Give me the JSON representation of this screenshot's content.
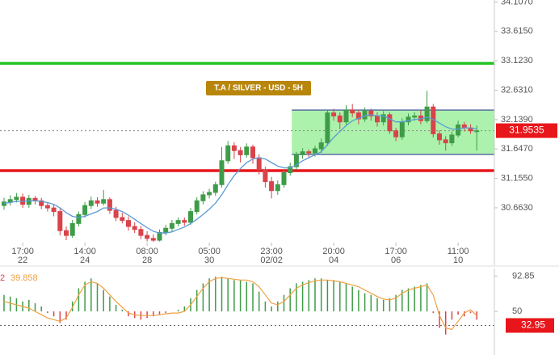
{
  "chart_data": {
    "type": "candlestick",
    "title": "T.A / SILVER - USD - 5H",
    "categories": [
      null,
      null,
      null,
      "17:00",
      null,
      null,
      null,
      null,
      null,
      null,
      null,
      null,
      null,
      "14:00",
      null,
      null,
      null,
      null,
      null,
      null,
      null,
      null,
      null,
      "08:00",
      null,
      null,
      null,
      null,
      null,
      null,
      null,
      null,
      null,
      "05:00",
      null,
      null,
      null,
      null,
      null,
      null,
      null,
      null,
      null,
      "23:00",
      null,
      null,
      null,
      null,
      null,
      null,
      null,
      null,
      null,
      "20:00",
      null,
      null,
      null,
      null,
      null,
      null,
      null,
      null,
      null,
      "17:00",
      null,
      null,
      null,
      null,
      null,
      null,
      null,
      null,
      null,
      "11:00",
      null,
      null,
      null
    ],
    "category_dates": [
      null,
      null,
      null,
      "22",
      null,
      null,
      null,
      null,
      null,
      null,
      null,
      null,
      null,
      "24",
      null,
      null,
      null,
      null,
      null,
      null,
      null,
      null,
      null,
      "28",
      null,
      null,
      null,
      null,
      null,
      null,
      null,
      null,
      null,
      "30",
      null,
      null,
      null,
      null,
      null,
      null,
      null,
      null,
      null,
      "02/02",
      null,
      null,
      null,
      null,
      null,
      null,
      null,
      null,
      null,
      "04",
      null,
      null,
      null,
      null,
      null,
      null,
      null,
      null,
      null,
      "06",
      null,
      null,
      null,
      null,
      null,
      null,
      null,
      null,
      null,
      "10",
      null,
      null,
      null
    ],
    "candles": [
      [
        30.7,
        30.83,
        30.63,
        30.76
      ],
      [
        30.76,
        30.87,
        30.7,
        30.8
      ],
      [
        30.8,
        30.91,
        30.75,
        30.84
      ],
      [
        30.84,
        30.9,
        30.66,
        30.72
      ],
      [
        30.72,
        30.88,
        30.66,
        30.82
      ],
      [
        30.82,
        30.86,
        30.72,
        30.78
      ],
      [
        30.78,
        30.83,
        30.64,
        30.7
      ],
      [
        30.7,
        30.76,
        30.6,
        30.66
      ],
      [
        30.66,
        30.72,
        30.52,
        30.6
      ],
      [
        30.6,
        30.66,
        30.2,
        30.28
      ],
      [
        30.28,
        30.35,
        30.12,
        30.2
      ],
      [
        30.2,
        30.46,
        30.16,
        30.4
      ],
      [
        30.4,
        30.6,
        30.35,
        30.55
      ],
      [
        30.55,
        30.76,
        30.5,
        30.7
      ],
      [
        30.7,
        30.85,
        30.64,
        30.78
      ],
      [
        30.78,
        30.84,
        30.68,
        30.74
      ],
      [
        30.74,
        30.96,
        30.7,
        30.8
      ],
      [
        30.8,
        30.84,
        30.56,
        30.62
      ],
      [
        30.62,
        30.68,
        30.44,
        30.5
      ],
      [
        30.5,
        30.58,
        30.4,
        30.45
      ],
      [
        30.45,
        30.52,
        30.28,
        30.35
      ],
      [
        30.35,
        30.42,
        30.24,
        30.3
      ],
      [
        30.3,
        30.36,
        30.14,
        30.2
      ],
      [
        30.2,
        30.27,
        30.1,
        30.15
      ],
      [
        30.15,
        30.22,
        30.09,
        30.12
      ],
      [
        30.12,
        30.3,
        30.1,
        30.25
      ],
      [
        30.25,
        30.38,
        30.2,
        30.32
      ],
      [
        30.32,
        30.46,
        30.27,
        30.4
      ],
      [
        30.4,
        30.5,
        30.35,
        30.45
      ],
      [
        30.45,
        30.5,
        30.36,
        30.42
      ],
      [
        30.42,
        30.66,
        30.38,
        30.6
      ],
      [
        30.6,
        30.84,
        30.55,
        30.78
      ],
      [
        30.78,
        30.94,
        30.72,
        30.88
      ],
      [
        30.88,
        30.98,
        30.82,
        30.92
      ],
      [
        30.92,
        31.1,
        30.86,
        31.05
      ],
      [
        31.05,
        31.68,
        31.0,
        31.45
      ],
      [
        31.45,
        31.78,
        31.4,
        31.7
      ],
      [
        31.7,
        31.76,
        31.48,
        31.62
      ],
      [
        31.62,
        31.68,
        31.42,
        31.55
      ],
      [
        31.55,
        31.74,
        31.5,
        31.68
      ],
      [
        31.68,
        31.72,
        31.4,
        31.5
      ],
      [
        31.5,
        31.56,
        31.22,
        31.3
      ],
      [
        31.3,
        31.35,
        31.0,
        31.1
      ],
      [
        31.1,
        31.18,
        30.82,
        30.95
      ],
      [
        30.95,
        31.12,
        30.88,
        31.05
      ],
      [
        31.05,
        31.3,
        31.0,
        31.25
      ],
      [
        31.25,
        31.42,
        31.2,
        31.35
      ],
      [
        31.35,
        31.6,
        31.3,
        31.55
      ],
      [
        31.55,
        31.66,
        31.48,
        31.6
      ],
      [
        31.6,
        31.64,
        31.5,
        31.58
      ],
      [
        31.58,
        31.7,
        31.52,
        31.65
      ],
      [
        31.65,
        31.82,
        31.58,
        31.75
      ],
      [
        31.75,
        32.3,
        31.7,
        32.25
      ],
      [
        32.25,
        32.32,
        32.12,
        32.2
      ],
      [
        32.2,
        32.26,
        31.98,
        32.1
      ],
      [
        32.1,
        32.38,
        32.04,
        32.3
      ],
      [
        32.3,
        32.4,
        32.18,
        32.25
      ],
      [
        32.25,
        32.3,
        32.06,
        32.15
      ],
      [
        32.15,
        32.34,
        32.1,
        32.28
      ],
      [
        32.28,
        32.32,
        32.12,
        32.2
      ],
      [
        32.2,
        32.26,
        32.02,
        32.1
      ],
      [
        32.1,
        32.28,
        32.04,
        32.22
      ],
      [
        32.22,
        32.26,
        31.9,
        31.95
      ],
      [
        31.95,
        32.0,
        31.78,
        31.85
      ],
      [
        31.85,
        32.16,
        31.8,
        32.1
      ],
      [
        32.1,
        32.24,
        32.04,
        32.18
      ],
      [
        32.18,
        32.26,
        32.12,
        32.2
      ],
      [
        32.2,
        32.3,
        32.06,
        32.12
      ],
      [
        32.12,
        32.62,
        32.08,
        32.35
      ],
      [
        32.35,
        32.4,
        31.84,
        31.9
      ],
      [
        31.9,
        31.96,
        31.72,
        31.8
      ],
      [
        31.8,
        31.86,
        31.62,
        31.75
      ],
      [
        31.75,
        31.94,
        31.7,
        31.88
      ],
      [
        31.88,
        32.12,
        31.84,
        32.05
      ],
      [
        32.05,
        32.1,
        31.94,
        32.0
      ],
      [
        32.0,
        32.06,
        31.9,
        31.95
      ],
      [
        31.95,
        32.04,
        31.62,
        31.95
      ]
    ],
    "up_color": "#3e9c48",
    "down_color": "#d9434a",
    "ma": {
      "color": "#5b9bd5",
      "values": [
        30.74,
        30.75,
        30.77,
        30.77,
        30.78,
        30.78,
        30.77,
        30.75,
        30.72,
        30.66,
        30.58,
        30.52,
        30.5,
        30.52,
        30.56,
        30.6,
        30.66,
        30.66,
        30.64,
        30.6,
        30.54,
        30.47,
        30.4,
        30.33,
        30.27,
        30.24,
        30.24,
        30.26,
        30.3,
        30.34,
        30.4,
        30.47,
        30.55,
        30.64,
        30.74,
        30.88,
        31.05,
        31.2,
        31.32,
        31.42,
        31.48,
        31.5,
        31.48,
        31.42,
        31.36,
        31.33,
        31.33,
        31.38,
        31.45,
        31.5,
        31.55,
        31.6,
        31.72,
        31.84,
        31.94,
        32.04,
        32.12,
        32.16,
        32.2,
        32.22,
        32.2,
        32.2,
        32.15,
        32.1,
        32.1,
        32.12,
        32.14,
        32.15,
        32.18,
        32.14,
        32.08,
        32.02,
        31.98,
        31.98,
        32.0,
        32.0,
        31.98
      ]
    },
    "ylim": [
      30.08,
      34.14
    ],
    "yticks": [
      {
        "value": 34.107,
        "label": "34.1070"
      },
      {
        "value": 33.615,
        "label": "33.6150"
      },
      {
        "value": 33.123,
        "label": "33.1230"
      },
      {
        "value": 32.631,
        "label": "32.6310"
      },
      {
        "value": 32.139,
        "label": "32.1390"
      },
      {
        "value": 31.647,
        "label": "31.6470"
      },
      {
        "value": 31.155,
        "label": "31.1550"
      },
      {
        "value": 30.663,
        "label": "30.6630"
      }
    ],
    "last_price": 31.9535,
    "levels": [
      {
        "value": 33.08,
        "color": "#22c322"
      },
      {
        "value": 31.285,
        "color": "#e8161b"
      }
    ],
    "range_box": {
      "start": 46,
      "high": 32.298,
      "low": 31.555,
      "color": "#90ee90",
      "edge_color": "#5a6fa0"
    },
    "oscillator": {
      "period": "2",
      "current": 39.858,
      "ylim": [
        4,
        104
      ],
      "yticks": [
        92.85,
        50
      ],
      "last": 32.95,
      "line_color": "#f0a040",
      "up_color": "#3e9c48",
      "down_color": "#d9434a",
      "hist": [
        70,
        68,
        66,
        62,
        64,
        60,
        56,
        48,
        44,
        36,
        40,
        62,
        78,
        86,
        90,
        84,
        76,
        68,
        58,
        52,
        44,
        42,
        40,
        42,
        44,
        46,
        48,
        50,
        52,
        56,
        66,
        76,
        84,
        90,
        92,
        92,
        90,
        88,
        88,
        86,
        84,
        74,
        62,
        56,
        62,
        70,
        78,
        84,
        86,
        88,
        90,
        90,
        88,
        88,
        86,
        84,
        80,
        76,
        72,
        70,
        66,
        64,
        66,
        70,
        76,
        78,
        80,
        82,
        84,
        48,
        30,
        22,
        40,
        46,
        44,
        48,
        40
      ],
      "line": [
        62,
        60,
        58,
        56,
        54,
        50,
        46,
        42,
        40,
        38,
        42,
        55,
        70,
        82,
        86,
        84,
        78,
        70,
        62,
        55,
        48,
        46,
        45,
        45,
        45,
        46,
        47,
        48,
        48,
        50,
        58,
        68,
        78,
        86,
        90,
        91,
        90,
        89,
        88,
        88,
        86,
        80,
        70,
        60,
        58,
        62,
        70,
        78,
        82,
        85,
        87,
        88,
        88,
        87,
        86,
        84,
        82,
        80,
        76,
        72,
        68,
        65,
        64,
        66,
        72,
        76,
        78,
        80,
        82,
        70,
        45,
        30,
        28,
        38,
        48,
        52,
        45
      ]
    }
  }
}
